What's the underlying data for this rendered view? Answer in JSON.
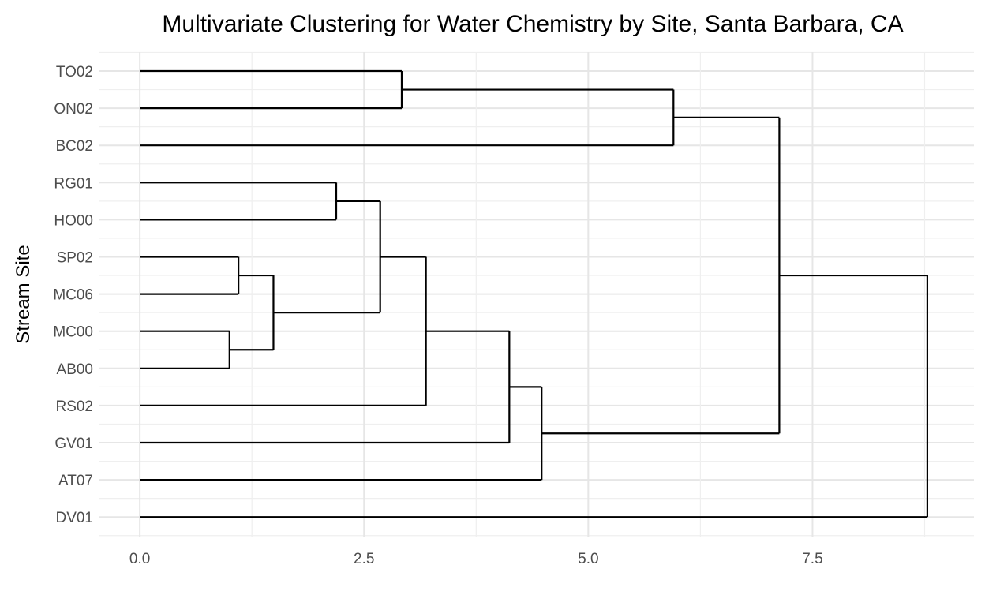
{
  "chart_data": {
    "type": "dendrogram",
    "title": "Multivariate Clustering for Water Chemistry by Site, Santa Barbara, CA",
    "xlabel": "",
    "ylabel": "Stream Site",
    "xlim": [
      -0.45,
      9.3
    ],
    "x_ticks": [
      "0.0",
      "2.5",
      "5.0",
      "7.5"
    ],
    "x_tick_values": [
      0,
      2.5,
      5.0,
      7.5
    ],
    "grid": true,
    "leaves": [
      "TO02",
      "ON02",
      "BC02",
      "RG01",
      "HO00",
      "SP02",
      "MC06",
      "MC00",
      "AB00",
      "RS02",
      "GV01",
      "AT07",
      "DV01"
    ],
    "merges": [
      {
        "a": "TO02",
        "b": "ON02",
        "height": 2.92,
        "id": "m1"
      },
      {
        "a": "m1",
        "b": "BC02",
        "height": 5.95,
        "id": "m2"
      },
      {
        "a": "RG01",
        "b": "HO00",
        "height": 2.19,
        "id": "m3"
      },
      {
        "a": "SP02",
        "b": "MC06",
        "height": 1.1,
        "id": "m4"
      },
      {
        "a": "MC00",
        "b": "AB00",
        "height": 1.0,
        "id": "m5"
      },
      {
        "a": "m4",
        "b": "m5",
        "height": 1.49,
        "id": "m6"
      },
      {
        "a": "m3",
        "b": "m6",
        "height": 2.68,
        "id": "m7"
      },
      {
        "a": "m7",
        "b": "RS02",
        "height": 3.19,
        "id": "m8"
      },
      {
        "a": "m8",
        "b": "GV01",
        "height": 4.12,
        "id": "m9"
      },
      {
        "a": "m9",
        "b": "AT07",
        "height": 4.48,
        "id": "m10"
      },
      {
        "a": "m2",
        "b": "m10",
        "height": 7.13,
        "id": "m11"
      },
      {
        "a": "m11",
        "b": "DV01",
        "height": 8.78,
        "id": "m12"
      }
    ]
  }
}
